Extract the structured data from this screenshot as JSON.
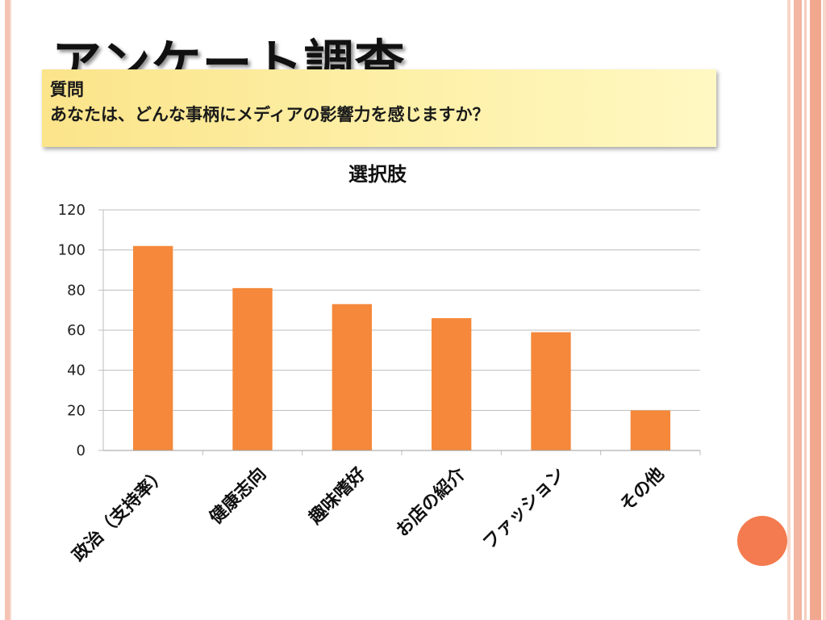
{
  "slide": {
    "title": "アンケート調査",
    "question_label": "質問",
    "question_text": "あなたは、どんな事柄にメディアの影響力を感じますか？"
  },
  "colors": {
    "bar": "#f5883a",
    "grid": "#bdbdbd",
    "question_box": "#fdf0a8",
    "accent_circle": "#f47b4f",
    "border": "#f3b6a2"
  },
  "chart_data": {
    "type": "bar",
    "title": "選択肢",
    "categories": [
      "政治（支持率）",
      "健康志向",
      "趣味嗜好",
      "お店の紹介",
      "ファッション",
      "その他"
    ],
    "values": [
      102,
      81,
      73,
      66,
      59,
      20
    ],
    "ylim": [
      0,
      120
    ],
    "yticks": [
      0,
      20,
      40,
      60,
      80,
      100,
      120
    ],
    "grid": true,
    "legend": "none"
  }
}
